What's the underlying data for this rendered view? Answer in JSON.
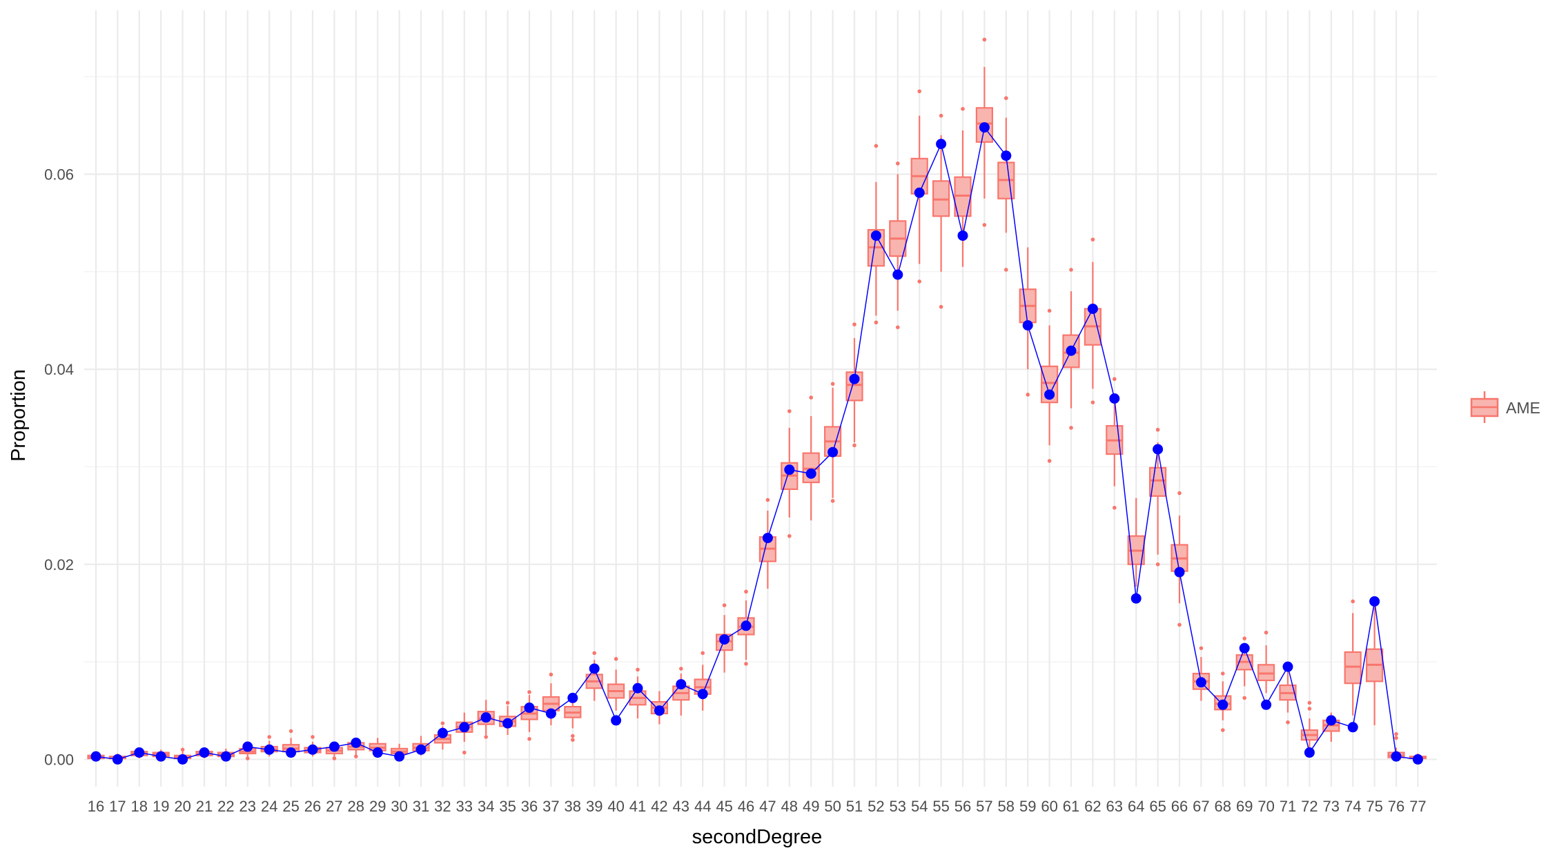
{
  "chart_data": {
    "type": "box",
    "title": "",
    "xlabel": "secondDegree",
    "ylabel": "Proportion",
    "ylim": [
      -0.0028,
      0.0768
    ],
    "yticks": [
      0.0,
      0.02,
      0.04,
      0.06
    ],
    "ytick_labels": [
      "0.00",
      "0.02",
      "0.04",
      "0.06"
    ],
    "grid": true,
    "legend": {
      "position": "right",
      "entries": [
        {
          "label": "AME"
        }
      ]
    },
    "categories": [
      "16",
      "17",
      "18",
      "19",
      "20",
      "21",
      "22",
      "23",
      "24",
      "25",
      "26",
      "27",
      "28",
      "29",
      "30",
      "31",
      "32",
      "33",
      "34",
      "35",
      "36",
      "37",
      "38",
      "39",
      "40",
      "41",
      "42",
      "43",
      "44",
      "45",
      "46",
      "47",
      "48",
      "49",
      "50",
      "51",
      "52",
      "53",
      "54",
      "55",
      "56",
      "57",
      "58",
      "59",
      "60",
      "61",
      "62",
      "63",
      "64",
      "65",
      "66",
      "67",
      "68",
      "69",
      "70",
      "71",
      "72",
      "73",
      "74",
      "75",
      "76",
      "77"
    ],
    "series": [
      {
        "kind": "boxplot",
        "color": "#F8766D",
        "fill": "#F8B4AF",
        "boxes": [
          {
            "min": 0.0,
            "q1": 0.0001,
            "median": 0.0002,
            "q3": 0.0004,
            "max": 0.0008,
            "outliers": []
          },
          {
            "min": 0.0,
            "q1": 0.0001,
            "median": 0.0002,
            "q3": 0.0003,
            "max": 0.0006,
            "outliers": []
          },
          {
            "min": 0.0001,
            "q1": 0.0004,
            "median": 0.0006,
            "q3": 0.0008,
            "max": 0.0012,
            "outliers": []
          },
          {
            "min": 0.0001,
            "q1": 0.0003,
            "median": 0.0005,
            "q3": 0.0007,
            "max": 0.001,
            "outliers": []
          },
          {
            "min": 0.0,
            "q1": 0.0001,
            "median": 0.0002,
            "q3": 0.0004,
            "max": 0.0008,
            "outliers": [
              0.001
            ]
          },
          {
            "min": 0.0001,
            "q1": 0.0004,
            "median": 0.0006,
            "q3": 0.0008,
            "max": 0.0012,
            "outliers": []
          },
          {
            "min": 0.0,
            "q1": 0.0003,
            "median": 0.0005,
            "q3": 0.0007,
            "max": 0.0011,
            "outliers": []
          },
          {
            "min": 0.0002,
            "q1": 0.0006,
            "median": 0.0008,
            "q3": 0.0011,
            "max": 0.0016,
            "outliers": [
              0.0001
            ]
          },
          {
            "min": 0.0003,
            "q1": 0.0008,
            "median": 0.001,
            "q3": 0.0013,
            "max": 0.0019,
            "outliers": [
              0.0023
            ]
          },
          {
            "min": 0.0004,
            "q1": 0.0008,
            "median": 0.0011,
            "q3": 0.0015,
            "max": 0.0022,
            "outliers": [
              0.0029
            ]
          },
          {
            "min": 0.0003,
            "q1": 0.0007,
            "median": 0.0009,
            "q3": 0.0012,
            "max": 0.0018,
            "outliers": [
              0.0023
            ]
          },
          {
            "min": 0.0002,
            "q1": 0.0006,
            "median": 0.0009,
            "q3": 0.0012,
            "max": 0.0018,
            "outliers": [
              0.0001
            ]
          },
          {
            "min": 0.0004,
            "q1": 0.001,
            "median": 0.0013,
            "q3": 0.0017,
            "max": 0.0022,
            "outliers": [
              0.0003
            ]
          },
          {
            "min": 0.0004,
            "q1": 0.0009,
            "median": 0.0012,
            "q3": 0.0016,
            "max": 0.0022,
            "outliers": []
          },
          {
            "min": 0.0003,
            "q1": 0.0006,
            "median": 0.0008,
            "q3": 0.0011,
            "max": 0.0016,
            "outliers": []
          },
          {
            "min": 0.0004,
            "q1": 0.0009,
            "median": 0.0012,
            "q3": 0.0016,
            "max": 0.0024,
            "outliers": []
          },
          {
            "min": 0.001,
            "q1": 0.0017,
            "median": 0.0021,
            "q3": 0.0025,
            "max": 0.0034,
            "outliers": [
              0.0037
            ]
          },
          {
            "min": 0.0018,
            "q1": 0.0028,
            "median": 0.0033,
            "q3": 0.0038,
            "max": 0.0048,
            "outliers": [
              0.0007
            ]
          },
          {
            "min": 0.0025,
            "q1": 0.0036,
            "median": 0.0042,
            "q3": 0.0049,
            "max": 0.0061,
            "outliers": [
              0.0023
            ]
          },
          {
            "min": 0.0025,
            "q1": 0.0034,
            "median": 0.0039,
            "q3": 0.0044,
            "max": 0.0055,
            "outliers": [
              0.0058
            ]
          },
          {
            "min": 0.0028,
            "q1": 0.0041,
            "median": 0.0047,
            "q3": 0.0054,
            "max": 0.0066,
            "outliers": [
              0.0021,
              0.0069
            ]
          },
          {
            "min": 0.0035,
            "q1": 0.005,
            "median": 0.0057,
            "q3": 0.0064,
            "max": 0.0078,
            "outliers": [
              0.0087
            ]
          },
          {
            "min": 0.0032,
            "q1": 0.0043,
            "median": 0.0048,
            "q3": 0.0054,
            "max": 0.0064,
            "outliers": [
              0.002,
              0.0024
            ]
          },
          {
            "min": 0.006,
            "q1": 0.0073,
            "median": 0.008,
            "q3": 0.0087,
            "max": 0.0102,
            "outliers": [
              0.0109
            ]
          },
          {
            "min": 0.005,
            "q1": 0.0063,
            "median": 0.007,
            "q3": 0.0077,
            "max": 0.0092,
            "outliers": [
              0.0103
            ]
          },
          {
            "min": 0.0042,
            "q1": 0.0056,
            "median": 0.0063,
            "q3": 0.007,
            "max": 0.0085,
            "outliers": [
              0.0092
            ]
          },
          {
            "min": 0.0036,
            "q1": 0.0047,
            "median": 0.0053,
            "q3": 0.0059,
            "max": 0.007,
            "outliers": []
          },
          {
            "min": 0.0045,
            "q1": 0.0061,
            "median": 0.0068,
            "q3": 0.0075,
            "max": 0.0088,
            "outliers": [
              0.0093
            ]
          },
          {
            "min": 0.005,
            "q1": 0.0067,
            "median": 0.0074,
            "q3": 0.0082,
            "max": 0.0097,
            "outliers": [
              0.0109
            ]
          },
          {
            "min": 0.0089,
            "q1": 0.0112,
            "median": 0.0121,
            "q3": 0.0128,
            "max": 0.0148,
            "outliers": [
              0.0158
            ]
          },
          {
            "min": 0.0102,
            "q1": 0.0128,
            "median": 0.0136,
            "q3": 0.0145,
            "max": 0.0163,
            "outliers": [
              0.0098,
              0.0172
            ]
          },
          {
            "min": 0.0175,
            "q1": 0.0203,
            "median": 0.0216,
            "q3": 0.0228,
            "max": 0.0255,
            "outliers": [
              0.0266
            ]
          },
          {
            "min": 0.0248,
            "q1": 0.0277,
            "median": 0.0291,
            "q3": 0.0304,
            "max": 0.034,
            "outliers": [
              0.0229,
              0.0357
            ]
          },
          {
            "min": 0.0245,
            "q1": 0.0284,
            "median": 0.0298,
            "q3": 0.0314,
            "max": 0.0352,
            "outliers": [
              0.0371
            ]
          },
          {
            "min": 0.0268,
            "q1": 0.0311,
            "median": 0.0326,
            "q3": 0.0341,
            "max": 0.0381,
            "outliers": [
              0.0265,
              0.0385
            ]
          },
          {
            "min": 0.0325,
            "q1": 0.0368,
            "median": 0.0384,
            "q3": 0.0397,
            "max": 0.0432,
            "outliers": [
              0.0322,
              0.0446
            ]
          },
          {
            "min": 0.0455,
            "q1": 0.0506,
            "median": 0.0525,
            "q3": 0.0543,
            "max": 0.0592,
            "outliers": [
              0.0448,
              0.0629
            ]
          },
          {
            "min": 0.046,
            "q1": 0.0516,
            "median": 0.0534,
            "q3": 0.0552,
            "max": 0.06,
            "outliers": [
              0.0443,
              0.0611
            ]
          },
          {
            "min": 0.0508,
            "q1": 0.058,
            "median": 0.0598,
            "q3": 0.0616,
            "max": 0.066,
            "outliers": [
              0.049,
              0.0685
            ]
          },
          {
            "min": 0.05,
            "q1": 0.0557,
            "median": 0.0574,
            "q3": 0.0593,
            "max": 0.064,
            "outliers": [
              0.0464,
              0.066
            ]
          },
          {
            "min": 0.0505,
            "q1": 0.0557,
            "median": 0.0578,
            "q3": 0.0597,
            "max": 0.0645,
            "outliers": [
              0.0667
            ]
          },
          {
            "min": 0.0575,
            "q1": 0.0633,
            "median": 0.0652,
            "q3": 0.0668,
            "max": 0.071,
            "outliers": [
              0.0548,
              0.0738
            ]
          },
          {
            "min": 0.054,
            "q1": 0.0575,
            "median": 0.0594,
            "q3": 0.0612,
            "max": 0.0658,
            "outliers": [
              0.0502,
              0.0678
            ]
          },
          {
            "min": 0.04,
            "q1": 0.0448,
            "median": 0.0465,
            "q3": 0.0482,
            "max": 0.0525,
            "outliers": [
              0.0374
            ]
          },
          {
            "min": 0.0322,
            "q1": 0.0366,
            "median": 0.0386,
            "q3": 0.0403,
            "max": 0.0445,
            "outliers": [
              0.0306,
              0.046
            ]
          },
          {
            "min": 0.036,
            "q1": 0.0402,
            "median": 0.0417,
            "q3": 0.0435,
            "max": 0.048,
            "outliers": [
              0.034,
              0.0502
            ]
          },
          {
            "min": 0.038,
            "q1": 0.0425,
            "median": 0.0444,
            "q3": 0.0462,
            "max": 0.051,
            "outliers": [
              0.0366,
              0.0533
            ]
          },
          {
            "min": 0.028,
            "q1": 0.0313,
            "median": 0.0327,
            "q3": 0.0342,
            "max": 0.0375,
            "outliers": [
              0.0258,
              0.039
            ]
          },
          {
            "min": 0.0177,
            "q1": 0.02,
            "median": 0.0214,
            "q3": 0.0229,
            "max": 0.0268,
            "outliers": []
          },
          {
            "min": 0.021,
            "q1": 0.027,
            "median": 0.0286,
            "q3": 0.0299,
            "max": 0.0325,
            "outliers": [
              0.02,
              0.0338
            ]
          },
          {
            "min": 0.016,
            "q1": 0.0193,
            "median": 0.0206,
            "q3": 0.022,
            "max": 0.025,
            "outliers": [
              0.0138,
              0.0273
            ]
          },
          {
            "min": 0.006,
            "q1": 0.0072,
            "median": 0.008,
            "q3": 0.0088,
            "max": 0.0105,
            "outliers": [
              0.0114
            ]
          },
          {
            "min": 0.004,
            "q1": 0.0051,
            "median": 0.0057,
            "q3": 0.0065,
            "max": 0.008,
            "outliers": [
              0.003,
              0.0088
            ]
          },
          {
            "min": 0.0075,
            "q1": 0.0092,
            "median": 0.01,
            "q3": 0.0107,
            "max": 0.0118,
            "outliers": [
              0.0063,
              0.0124
            ]
          },
          {
            "min": 0.0068,
            "q1": 0.0081,
            "median": 0.0088,
            "q3": 0.0097,
            "max": 0.0117,
            "outliers": [
              0.013
            ]
          },
          {
            "min": 0.0048,
            "q1": 0.0061,
            "median": 0.0068,
            "q3": 0.0076,
            "max": 0.0092,
            "outliers": [
              0.0038
            ]
          },
          {
            "min": 0.001,
            "q1": 0.002,
            "median": 0.0025,
            "q3": 0.003,
            "max": 0.0042,
            "outliers": [
              0.0052,
              0.0058
            ]
          },
          {
            "min": 0.0018,
            "q1": 0.0029,
            "median": 0.0035,
            "q3": 0.004,
            "max": 0.0048,
            "outliers": []
          },
          {
            "min": 0.0045,
            "q1": 0.0078,
            "median": 0.0095,
            "q3": 0.011,
            "max": 0.015,
            "outliers": [
              0.0162
            ]
          },
          {
            "min": 0.0035,
            "q1": 0.008,
            "median": 0.0097,
            "q3": 0.0113,
            "max": 0.0162,
            "outliers": []
          },
          {
            "min": 0.0,
            "q1": 0.0002,
            "median": 0.0004,
            "q3": 0.0007,
            "max": 0.0012,
            "outliers": [
              0.0022,
              0.0026
            ]
          },
          {
            "min": 0.0,
            "q1": 0.0001,
            "median": 0.0002,
            "q3": 0.0003,
            "max": 0.0006,
            "outliers": []
          }
        ]
      },
      {
        "kind": "line",
        "color": "#0000FF",
        "values": [
          0.0003,
          0.0,
          0.0007,
          0.0003,
          0.0,
          0.0007,
          0.0003,
          0.0013,
          0.001,
          0.0007,
          0.001,
          0.0013,
          0.0017,
          0.0007,
          0.0003,
          0.001,
          0.0027,
          0.0033,
          0.0043,
          0.0037,
          0.0053,
          0.0047,
          0.0063,
          0.0093,
          0.004,
          0.0073,
          0.005,
          0.0077,
          0.0067,
          0.0123,
          0.0137,
          0.0227,
          0.0297,
          0.0293,
          0.0315,
          0.039,
          0.0537,
          0.0497,
          0.0581,
          0.0631,
          0.0537,
          0.0648,
          0.0619,
          0.0445,
          0.0374,
          0.0419,
          0.0462,
          0.037,
          0.0165,
          0.0318,
          0.0192,
          0.0079,
          0.0056,
          0.0114,
          0.0056,
          0.0095,
          0.0007,
          0.004,
          0.0033,
          0.0162,
          0.0003,
          0.0
        ]
      }
    ]
  }
}
